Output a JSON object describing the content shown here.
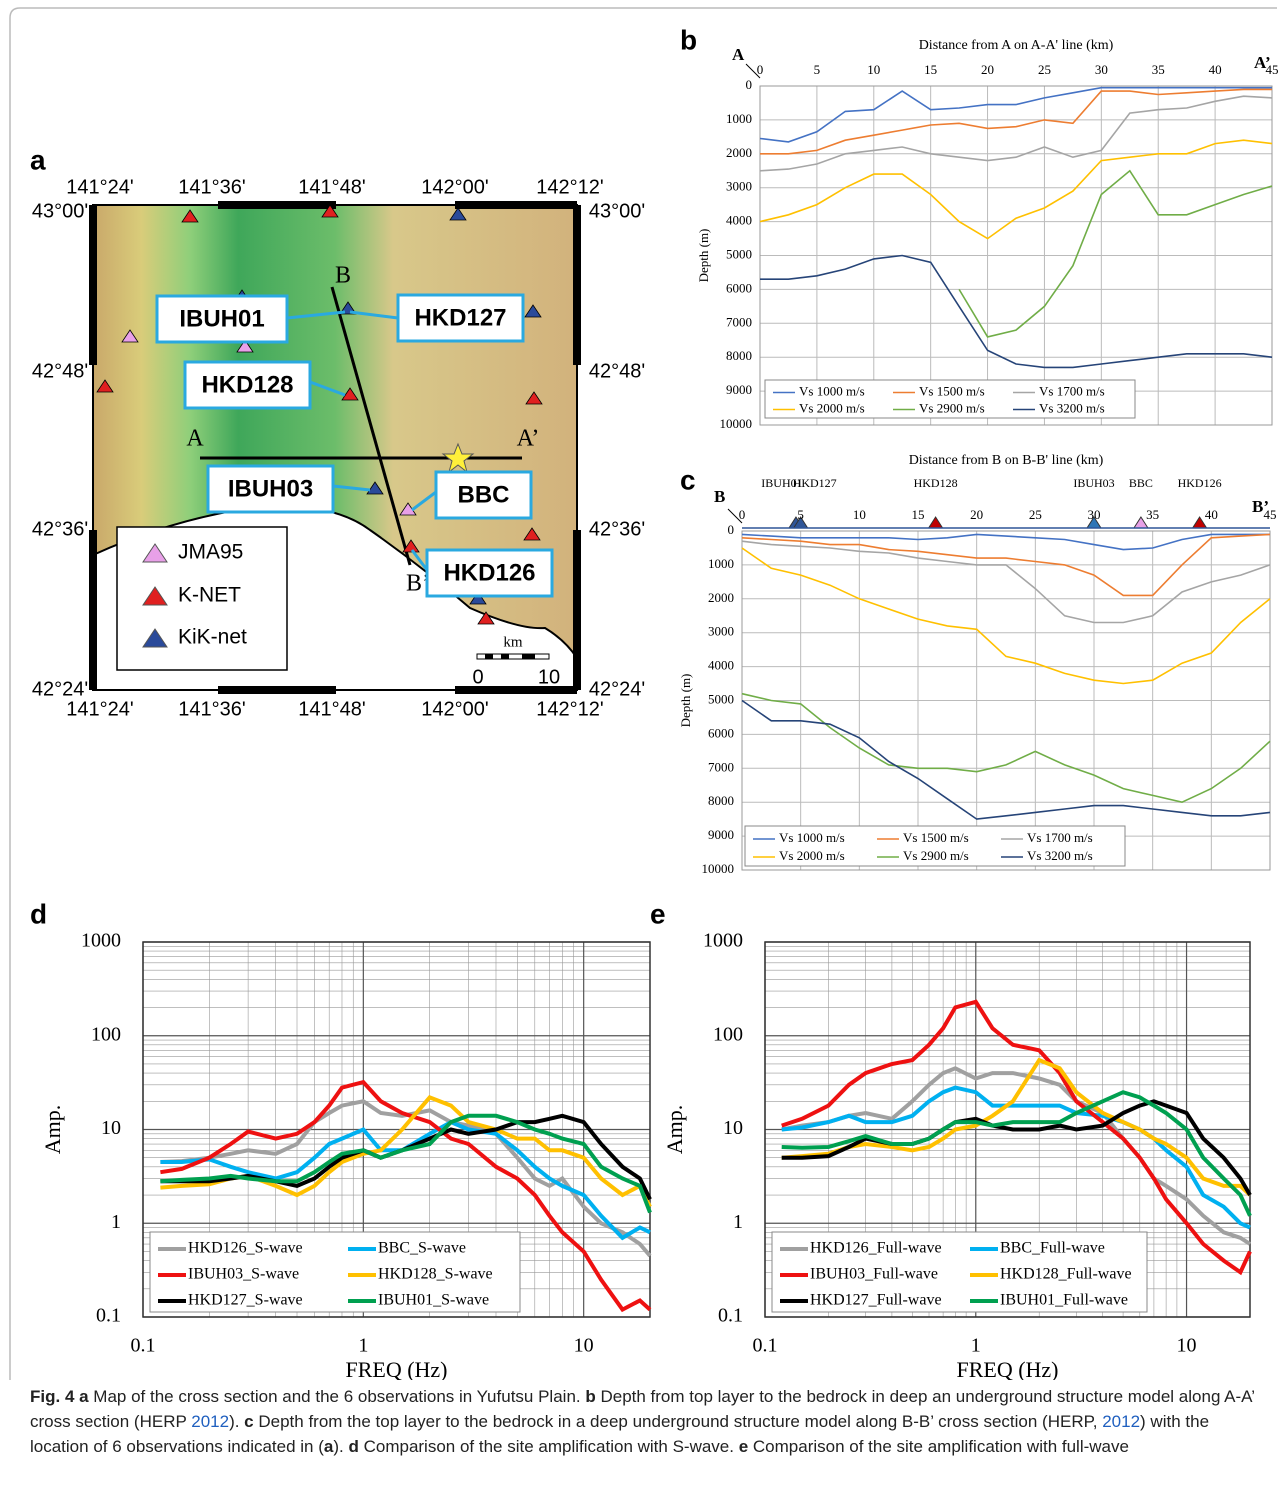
{
  "panel_labels": [
    "a",
    "b",
    "c",
    "d",
    "e"
  ],
  "map": {
    "lon_labels": [
      "141°24'",
      "141°36'",
      "141°48'",
      "142°00'",
      "142°12'"
    ],
    "lat_labels": [
      "43°00'",
      "42°48'",
      "42°36'",
      "42°24'"
    ],
    "section_labels": [
      "A",
      "A’",
      "B",
      "B’"
    ],
    "stations": [
      "IBUH01",
      "HKD127",
      "HKD128",
      "IBUH03",
      "BBC",
      "HKD126"
    ],
    "legend": [
      "JMA95",
      "K-NET",
      "KiK-net"
    ],
    "scale_unit": "km",
    "scale_ticks": [
      "0",
      "10"
    ]
  },
  "chart_data": [
    {
      "type": "line",
      "title": "Distance from A on A-A' line (km)",
      "ylabel": "Depth (m)",
      "start_label": "A",
      "end_label": "A’",
      "x": [
        0,
        2.5,
        5,
        7.5,
        10,
        12.5,
        15,
        17.5,
        20,
        22.5,
        25,
        27.5,
        30,
        32.5,
        35,
        37.5,
        40,
        42.5,
        45
      ],
      "xlim": [
        0,
        45
      ],
      "xticks": [
        0,
        5,
        10,
        15,
        20,
        25,
        30,
        35,
        40,
        45
      ],
      "ylim": [
        0,
        10000
      ],
      "yticks": [
        0,
        1000,
        2000,
        3000,
        4000,
        5000,
        6000,
        7000,
        8000,
        9000,
        10000
      ],
      "y_inverted": true,
      "x_axis": "top",
      "grid": true,
      "legend": "lower left",
      "series": [
        {
          "name": "Vs 1000 m/s",
          "color": "#4472c4",
          "values": [
            1550,
            1650,
            1350,
            750,
            700,
            150,
            700,
            650,
            550,
            550,
            350,
            200,
            50,
            50,
            50,
            50,
            50,
            50,
            50
          ]
        },
        {
          "name": "Vs 1500 m/s",
          "color": "#ed7d31",
          "values": [
            2000,
            2000,
            1900,
            1600,
            1450,
            1300,
            1150,
            1100,
            1250,
            1200,
            1000,
            1100,
            150,
            150,
            250,
            200,
            150,
            100,
            100
          ]
        },
        {
          "name": "Vs 1700 m/s",
          "color": "#a5a5a5",
          "values": [
            2500,
            2450,
            2300,
            2000,
            1900,
            1800,
            2000,
            2100,
            2200,
            2100,
            1800,
            2100,
            1900,
            800,
            700,
            650,
            450,
            300,
            350
          ]
        },
        {
          "name": "Vs 2000 m/s",
          "color": "#ffc000",
          "values": [
            4000,
            3800,
            3500,
            3000,
            2600,
            2600,
            3200,
            4000,
            4500,
            3900,
            3600,
            3100,
            2200,
            2100,
            2000,
            2000,
            1700,
            1600,
            1700
          ]
        },
        {
          "name": "Vs 2900 m/s",
          "color": "#70ad47",
          "values": [
            null,
            null,
            null,
            null,
            null,
            null,
            null,
            6000,
            7400,
            7200,
            6500,
            5300,
            3200,
            2500,
            3800,
            3800,
            3500,
            3200,
            2950
          ]
        },
        {
          "name": "Vs 3200 m/s",
          "color": "#264478",
          "values": [
            5700,
            5700,
            5600,
            5400,
            5100,
            5000,
            5200,
            6500,
            7800,
            8200,
            8300,
            8300,
            8200,
            8100,
            8000,
            7900,
            7900,
            7900,
            8000
          ]
        }
      ]
    },
    {
      "type": "line",
      "title": "Distance from B on B-B' line (km)",
      "ylabel": "Depth (m)",
      "start_label": "B",
      "end_label": "B’",
      "x": [
        0,
        2.5,
        5,
        7.5,
        10,
        12.5,
        15,
        17.5,
        20,
        22.5,
        25,
        27.5,
        30,
        32.5,
        35,
        37.5,
        40,
        42.5,
        45
      ],
      "xlim": [
        0,
        45
      ],
      "xticks": [
        0,
        5,
        10,
        15,
        20,
        25,
        30,
        35,
        40,
        45
      ],
      "ylim": [
        0,
        10000
      ],
      "yticks": [
        0,
        1000,
        2000,
        3000,
        4000,
        5000,
        6000,
        7000,
        8000,
        9000,
        10000
      ],
      "y_inverted": true,
      "x_axis": "top",
      "grid": true,
      "legend": "lower left",
      "markers": [
        {
          "name": "IBUH01",
          "x": 4.6,
          "color": "#2f5597"
        },
        {
          "name": "HKD127",
          "x": 5,
          "color": "#2f5597"
        },
        {
          "name": "HKD128",
          "x": 16.5,
          "color": "#c00000"
        },
        {
          "name": "IBUH03",
          "x": 30,
          "color": "#2e75b6"
        },
        {
          "name": "BBC",
          "x": 34,
          "color": "#e6a0e6"
        },
        {
          "name": "HKD126",
          "x": 39,
          "color": "#c00000"
        }
      ],
      "series": [
        {
          "name": "Vs 1000 m/s",
          "color": "#4472c4",
          "values": [
            100,
            150,
            200,
            200,
            200,
            200,
            250,
            200,
            100,
            150,
            200,
            250,
            400,
            550,
            500,
            250,
            100,
            100,
            100
          ]
        },
        {
          "name": "Vs 1500 m/s",
          "color": "#ed7d31",
          "values": [
            200,
            250,
            300,
            400,
            400,
            550,
            600,
            700,
            800,
            800,
            900,
            1000,
            1300,
            1900,
            1900,
            1000,
            200,
            150,
            100
          ]
        },
        {
          "name": "Vs 1700 m/s",
          "color": "#a5a5a5",
          "values": [
            300,
            400,
            450,
            500,
            600,
            650,
            800,
            900,
            1000,
            1000,
            1700,
            2500,
            2700,
            2700,
            2500,
            1800,
            1500,
            1300,
            1000
          ]
        },
        {
          "name": "Vs 2000 m/s",
          "color": "#ffc000",
          "values": [
            500,
            1100,
            1300,
            1600,
            2000,
            2300,
            2600,
            2800,
            2900,
            3700,
            3900,
            4200,
            4400,
            4500,
            4400,
            3900,
            3600,
            2700,
            2000
          ]
        },
        {
          "name": "Vs 2900 m/s",
          "color": "#70ad47",
          "values": [
            4800,
            5000,
            5100,
            5800,
            6400,
            6900,
            7000,
            7000,
            7100,
            6900,
            6500,
            6900,
            7200,
            7600,
            7800,
            8000,
            7600,
            7000,
            6200
          ]
        },
        {
          "name": "Vs 3200 m/s",
          "color": "#264478",
          "values": [
            5000,
            5600,
            5600,
            5700,
            6100,
            6800,
            7300,
            7900,
            8500,
            8400,
            8300,
            8200,
            8100,
            8100,
            8200,
            8300,
            8400,
            8400,
            8300
          ]
        }
      ]
    },
    {
      "type": "line",
      "xlabel": "FREQ (Hz)",
      "ylabel": "Amp.",
      "x": [
        0.12,
        0.15,
        0.2,
        0.25,
        0.3,
        0.4,
        0.5,
        0.6,
        0.7,
        0.8,
        1,
        1.2,
        1.5,
        2,
        2.5,
        3,
        4,
        5,
        6,
        7,
        8,
        10,
        12,
        15,
        18,
        20
      ],
      "xlim": [
        0.1,
        20
      ],
      "xticks": [
        0.1,
        1,
        10
      ],
      "ylim": [
        0.1,
        1000
      ],
      "yticks": [
        0.1,
        1,
        10,
        100,
        1000
      ],
      "xlog": true,
      "ylog": true,
      "x_axis": "bottom",
      "grid": true,
      "legend": "lower left",
      "series": [
        {
          "name": "HKD126_S-wave",
          "color": "#a0a0a0",
          "values": [
            4.5,
            4.6,
            5,
            5.5,
            6,
            5.5,
            7,
            12,
            15,
            18,
            20,
            15,
            14,
            16,
            12,
            11,
            9,
            5,
            3,
            2.5,
            3,
            1.5,
            1,
            0.8,
            0.6,
            0.45
          ]
        },
        {
          "name": "BBC_S-wave",
          "color": "#00b0f0",
          "values": [
            4.5,
            4.5,
            4.8,
            4,
            3.5,
            3,
            3.5,
            5,
            7,
            8,
            10,
            6,
            6,
            9,
            12,
            10,
            9,
            6,
            4,
            3,
            2.5,
            2,
            1.2,
            0.7,
            0.9,
            0.8
          ]
        },
        {
          "name": "IBUH03_S-wave",
          "color": "#ee1111",
          "values": [
            3.5,
            3.8,
            5,
            7,
            9.5,
            8,
            9,
            12,
            18,
            28,
            32,
            20,
            15,
            12,
            8,
            7,
            4,
            3,
            2,
            1.2,
            0.8,
            0.5,
            0.25,
            0.12,
            0.15,
            0.12
          ]
        },
        {
          "name": "HKD128_S-wave",
          "color": "#ffc000",
          "values": [
            2.4,
            2.5,
            2.6,
            3,
            3.2,
            2.5,
            2,
            2.5,
            3.5,
            4.5,
            5.5,
            6,
            10,
            22,
            18,
            12,
            10,
            8,
            8,
            6,
            6,
            5,
            3,
            2,
            2.5,
            1.5
          ]
        },
        {
          "name": "HKD127_S-wave",
          "color": "#000000",
          "values": [
            2.8,
            2.8,
            2.8,
            3,
            3.2,
            2.8,
            2.5,
            3,
            4,
            5,
            6,
            5,
            6,
            8,
            10,
            9,
            10,
            12,
            12,
            13,
            14,
            12,
            7,
            4,
            3,
            1.8
          ]
        },
        {
          "name": "IBUH01_S-wave",
          "color": "#00a050",
          "values": [
            2.8,
            2.9,
            3,
            3.2,
            3,
            2.8,
            2.8,
            3.5,
            4.5,
            5.5,
            6,
            5,
            6,
            7,
            12,
            14,
            14,
            12,
            10,
            9,
            8,
            7,
            4,
            3,
            2.5,
            1.3
          ]
        }
      ]
    },
    {
      "type": "line",
      "xlabel": "FREQ (Hz)",
      "ylabel": "Amp.",
      "x": [
        0.12,
        0.15,
        0.2,
        0.25,
        0.3,
        0.4,
        0.5,
        0.6,
        0.7,
        0.8,
        1,
        1.2,
        1.5,
        2,
        2.5,
        3,
        4,
        5,
        6,
        7,
        8,
        10,
        12,
        15,
        18,
        20
      ],
      "xlim": [
        0.1,
        20
      ],
      "xticks": [
        0.1,
        1,
        10
      ],
      "ylim": [
        0.1,
        1000
      ],
      "yticks": [
        0.1,
        1,
        10,
        100,
        1000
      ],
      "xlog": true,
      "ylog": true,
      "x_axis": "bottom",
      "grid": true,
      "legend": "lower left",
      "series": [
        {
          "name": "HKD126_Full-wave",
          "color": "#a0a0a0",
          "values": [
            10,
            11,
            12,
            14,
            15,
            13,
            20,
            30,
            40,
            45,
            35,
            40,
            40,
            35,
            30,
            20,
            15,
            8,
            5,
            3,
            2.5,
            1.8,
            1.2,
            0.8,
            0.7,
            0.6
          ]
        },
        {
          "name": "BBC_Full-wave",
          "color": "#00b0f0",
          "values": [
            10,
            10.5,
            12,
            14,
            12,
            12,
            14,
            20,
            25,
            28,
            25,
            18,
            18,
            18,
            18,
            15,
            14,
            12,
            10,
            8,
            6,
            4,
            2,
            1.5,
            1,
            0.9
          ]
        },
        {
          "name": "IBUH03_Full-wave",
          "color": "#ee1111",
          "values": [
            11,
            13,
            18,
            30,
            40,
            50,
            55,
            80,
            120,
            200,
            230,
            120,
            80,
            70,
            40,
            20,
            12,
            8,
            5,
            3,
            1.8,
            1,
            0.6,
            0.4,
            0.3,
            0.5
          ]
        },
        {
          "name": "HKD128_Full-wave",
          "color": "#ffc000",
          "values": [
            5,
            5.2,
            5.5,
            6.5,
            7,
            6.5,
            6,
            6.5,
            8,
            10,
            11,
            14,
            20,
            55,
            45,
            25,
            15,
            12,
            10,
            8,
            7,
            5,
            3,
            2.5,
            2.5,
            2
          ]
        },
        {
          "name": "HKD127_Full-wave",
          "color": "#000000",
          "values": [
            5,
            5,
            5.2,
            6.5,
            8,
            7,
            7,
            8,
            10,
            12,
            13,
            11,
            10,
            10,
            11,
            10,
            11,
            15,
            18,
            20,
            18,
            15,
            8,
            5,
            3,
            2
          ]
        },
        {
          "name": "IBUH01_Full-wave",
          "color": "#00a050",
          "values": [
            6.5,
            6.4,
            6.5,
            7.5,
            8.5,
            7,
            7,
            8,
            10,
            12,
            12,
            11,
            12,
            12,
            12,
            15,
            20,
            25,
            22,
            18,
            15,
            10,
            5,
            3,
            2,
            1.2
          ]
        }
      ]
    }
  ],
  "caption": [
    {
      "text": "Fig. 4 a",
      "bold": true
    },
    {
      "text": " Map of the cross section and the 6 observations in Yufutsu Plain. "
    },
    {
      "text": "b",
      "bold": true
    },
    {
      "text": " Depth from top layer to the bedrock in deep an underground structure model along A-A’ cross section (HERP "
    },
    {
      "text": "2012",
      "link": true
    },
    {
      "text": "). "
    },
    {
      "text": "c",
      "bold": true
    },
    {
      "text": " Depth from the top layer to the bedrock in a deep underground structure model along B-B’ cross section (HERP, "
    },
    {
      "text": "2012",
      "link": true
    },
    {
      "text": ") with the location of 6 observations indicated in ("
    },
    {
      "text": "a",
      "bold": true
    },
    {
      "text": "). "
    },
    {
      "text": "d",
      "bold": true
    },
    {
      "text": " Comparison of the site amplification with S-wave. "
    },
    {
      "text": "e",
      "bold": true
    },
    {
      "text": " Comparison of the site amplification with full-wave"
    }
  ]
}
